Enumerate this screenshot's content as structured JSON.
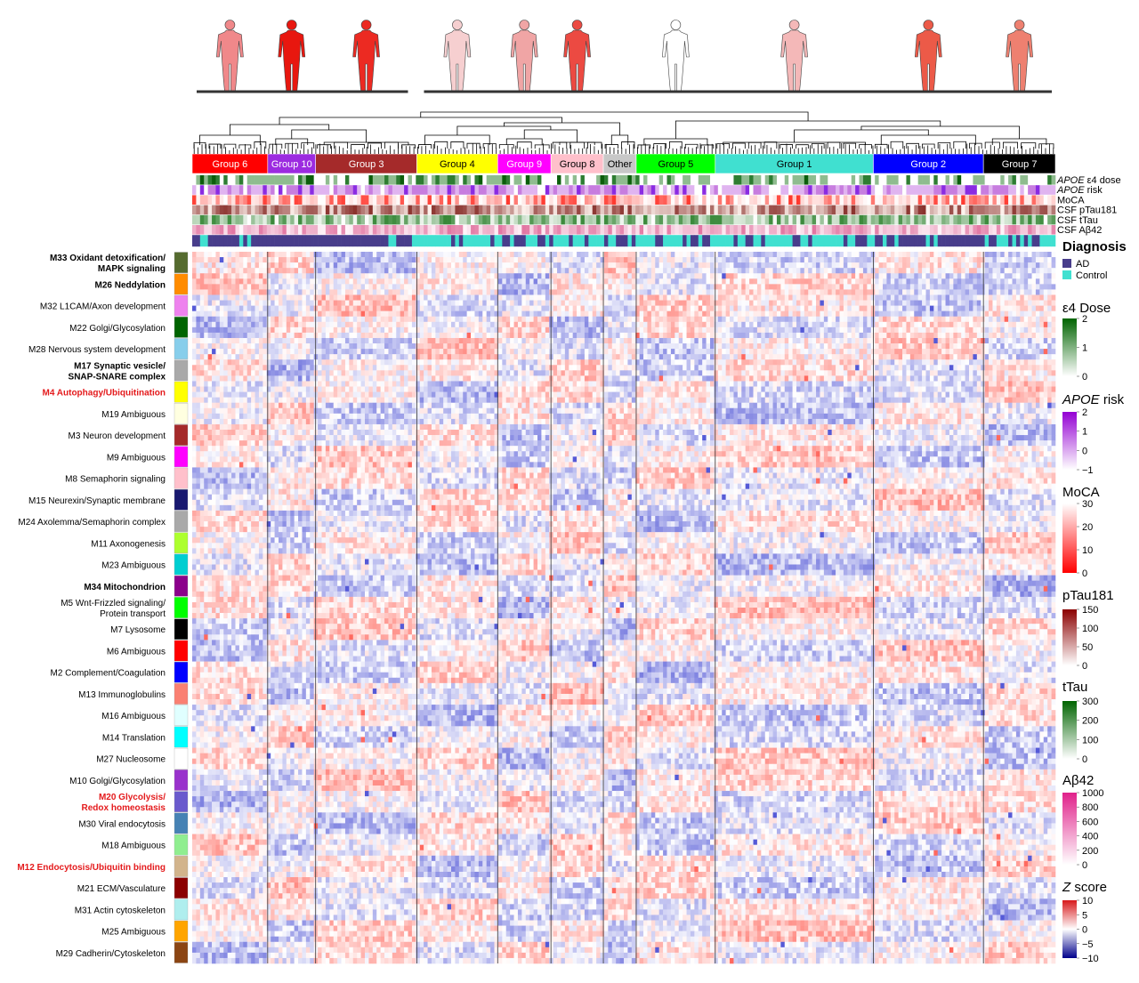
{
  "chart_data": {
    "type": "heatmap",
    "value_label": "Z score",
    "value_range": [
      -10,
      10
    ],
    "groups": [
      {
        "name": "Group 6",
        "fraction": 0.085,
        "color": "#ff0000",
        "text_color": "#ffffff",
        "body_color": "#f0888a"
      },
      {
        "name": "Group 10",
        "fraction": 0.054,
        "color": "#9c2be0",
        "text_color": "#ffffff",
        "body_color": "#e8170f"
      },
      {
        "name": "Group 3",
        "fraction": 0.114,
        "color": "#a52a2a",
        "text_color": "#ffffff",
        "body_color": "#ec2a22"
      },
      {
        "name": "Group 4",
        "fraction": 0.091,
        "color": "#ffff00",
        "text_color": "#000000",
        "body_color": "#f6cfd0"
      },
      {
        "name": "Group 9",
        "fraction": 0.06,
        "color": "#ff00ff",
        "text_color": "#ffffff",
        "body_color": "#f0a5a5"
      },
      {
        "name": "Group 8",
        "fraction": 0.059,
        "color": "#ffc0cb",
        "text_color": "#000000",
        "body_color": "#ec4a42"
      },
      {
        "name": "Other",
        "fraction": 0.037,
        "color": "#c8c8c8",
        "text_color": "#000000",
        "body_color": ""
      },
      {
        "name": "Group 5",
        "fraction": 0.089,
        "color": "#00ff00",
        "text_color": "#000000",
        "body_color": "#ffffff"
      },
      {
        "name": "Group 1",
        "fraction": 0.178,
        "color": "#40e0d0",
        "text_color": "#000000",
        "body_color": "#f4b8b8"
      },
      {
        "name": "Group 2",
        "fraction": 0.124,
        "color": "#0000ff",
        "text_color": "#ffffff",
        "body_color": "#ec5a48"
      },
      {
        "name": "Group 7",
        "fraction": 0.081,
        "color": "#000000",
        "text_color": "#ffffff",
        "body_color": "#ee8070"
      }
    ],
    "annotation_tracks": [
      {
        "label_italic": "APOE",
        "label": " ε4 dose"
      },
      {
        "label_italic": "APOE",
        "label": " risk"
      },
      {
        "label_italic": "",
        "label": "MoCA"
      },
      {
        "label_italic": "",
        "label": "CSF pTau181"
      },
      {
        "label_italic": "",
        "label": "CSF tTau"
      },
      {
        "label_italic": "",
        "label": "CSF Aβ42"
      },
      {
        "label_italic": "",
        "label": "Diagnosis"
      }
    ],
    "modules": [
      {
        "name": "M33 Oxidant detoxification/\nMAPK signaling",
        "color": "#556b2f",
        "bold": true,
        "red": false,
        "weight": 1
      },
      {
        "name": "M26 Neddylation",
        "color": "#ff8c00",
        "bold": true,
        "red": false,
        "weight": 1
      },
      {
        "name": "M32 L1CAM/Axon development",
        "color": "#ee82ee",
        "bold": false,
        "red": false,
        "weight": 1
      },
      {
        "name": "M22 Golgi/Glycosylation",
        "color": "#006400",
        "bold": false,
        "red": false,
        "weight": 1
      },
      {
        "name": "M28 Nervous system development",
        "color": "#87ceeb",
        "bold": false,
        "red": false,
        "weight": 1
      },
      {
        "name": "M17 Synaptic vesicle/\nSNAP-SNARE complex",
        "color": "#a9a9a9",
        "bold": true,
        "red": false,
        "weight": 1
      },
      {
        "name": "M4 Autophagy/Ubiquitination",
        "color": "#ffff00",
        "bold": true,
        "red": true,
        "weight": 1
      },
      {
        "name": "M19 Ambiguous",
        "color": "#ffffe0",
        "bold": false,
        "red": false,
        "weight": 1
      },
      {
        "name": "M3 Neuron development",
        "color": "#a52a2a",
        "bold": false,
        "red": false,
        "weight": 1
      },
      {
        "name": "M9 Ambiguous",
        "color": "#ff00ff",
        "bold": false,
        "red": false,
        "weight": 1
      },
      {
        "name": "M8 Semaphorin signaling",
        "color": "#ffc0cb",
        "bold": false,
        "red": false,
        "weight": 1
      },
      {
        "name": "M15 Neurexin/Synaptic membrane",
        "color": "#191970",
        "bold": false,
        "red": false,
        "weight": 1
      },
      {
        "name": "M24 Axolemma/Semaphorin complex",
        "color": "#a9a9a9",
        "bold": false,
        "red": false,
        "weight": 1
      },
      {
        "name": "M11 Axonogenesis",
        "color": "#adff2f",
        "bold": false,
        "red": false,
        "weight": 1
      },
      {
        "name": "M23 Ambiguous",
        "color": "#00ced1",
        "bold": false,
        "red": false,
        "weight": 1
      },
      {
        "name": "M34 Mitochondrion",
        "color": "#8b008b",
        "bold": true,
        "red": false,
        "weight": 1
      },
      {
        "name": "M5 Wnt-Frizzled signaling/\nProtein transport",
        "color": "#00ff00",
        "bold": false,
        "red": false,
        "weight": 1
      },
      {
        "name": "M7 Lysosome",
        "color": "#000000",
        "bold": false,
        "red": false,
        "weight": 1
      },
      {
        "name": "M6 Ambiguous",
        "color": "#ff0000",
        "bold": false,
        "red": false,
        "weight": 1
      },
      {
        "name": "M2 Complement/Coagulation",
        "color": "#0000ff",
        "bold": false,
        "red": false,
        "weight": 1
      },
      {
        "name": "M13 Immunoglobulins",
        "color": "#fa8072",
        "bold": false,
        "red": false,
        "weight": 1
      },
      {
        "name": "M16 Ambiguous",
        "color": "#e0ffff",
        "bold": false,
        "red": false,
        "weight": 1
      },
      {
        "name": "M14 Translation",
        "color": "#00ffff",
        "bold": false,
        "red": false,
        "weight": 1
      },
      {
        "name": "M27 Nucleosome",
        "color": "#ffffff",
        "bold": false,
        "red": false,
        "weight": 1
      },
      {
        "name": "M10 Golgi/Glycosylation",
        "color": "#9932cc",
        "bold": false,
        "red": false,
        "weight": 1
      },
      {
        "name": "M20 Glycolysis/\nRedox homeostasis",
        "color": "#6a5acd",
        "bold": true,
        "red": true,
        "weight": 1
      },
      {
        "name": "M30 Viral endocytosis",
        "color": "#4682b4",
        "bold": false,
        "red": false,
        "weight": 1
      },
      {
        "name": "M18 Ambiguous",
        "color": "#90ee90",
        "bold": false,
        "red": false,
        "weight": 1
      },
      {
        "name": "M12 Endocytosis/Ubiquitin binding",
        "color": "#d2b48c",
        "bold": true,
        "red": true,
        "weight": 1
      },
      {
        "name": "M21 ECM/Vasculature",
        "color": "#8b0000",
        "bold": false,
        "red": false,
        "weight": 1
      },
      {
        "name": "M31 Actin cytoskeleton",
        "color": "#afeeee",
        "bold": false,
        "red": false,
        "weight": 1
      },
      {
        "name": "M25 Ambiguous",
        "color": "#ffa500",
        "bold": false,
        "red": false,
        "weight": 1
      },
      {
        "name": "M29 Cadherin/Cytoskeleton",
        "color": "#8b4513",
        "bold": false,
        "red": false,
        "weight": 1
      }
    ],
    "legends": {
      "diagnosis": {
        "title": "Diagnosis",
        "items": [
          {
            "label": "AD",
            "color": "#483d8b"
          },
          {
            "label": "Control",
            "color": "#40e0d0"
          }
        ]
      },
      "scales": [
        {
          "title_italic": "",
          "title": "ε4 Dose",
          "ticks": [
            "2",
            "1",
            "0"
          ],
          "colors": [
            "#006400",
            "#ffffff"
          ]
        },
        {
          "title_italic": "APOE",
          "title": " risk",
          "ticks": [
            "2",
            "1",
            "0",
            "−1"
          ],
          "colors": [
            "#9400d3",
            "#ffffff"
          ]
        },
        {
          "title_italic": "",
          "title": "MoCA",
          "ticks": [
            "30",
            "20",
            "10",
            "0"
          ],
          "colors": [
            "#ffffff",
            "#ff0000"
          ]
        },
        {
          "title_italic": "",
          "title": "pTau181",
          "ticks": [
            "150",
            "100",
            "50",
            "0"
          ],
          "colors": [
            "#8b0000",
            "#ffffff"
          ]
        },
        {
          "title_italic": "",
          "title": "tTau",
          "ticks": [
            "300",
            "200",
            "100",
            "0"
          ],
          "colors": [
            "#006400",
            "#ffffff"
          ]
        },
        {
          "title_italic": "",
          "title": "Aβ42",
          "ticks": [
            "1000",
            "800",
            "600",
            "400",
            "200",
            "0"
          ],
          "colors": [
            "#e0218a",
            "#ffffff"
          ]
        },
        {
          "title_italic": "Z",
          "title": " score",
          "ticks": [
            "10",
            "5",
            "0",
            "−5",
            "−10"
          ],
          "colors": [
            "#d7191c",
            "#ffffff",
            "#00008b"
          ]
        }
      ]
    }
  }
}
